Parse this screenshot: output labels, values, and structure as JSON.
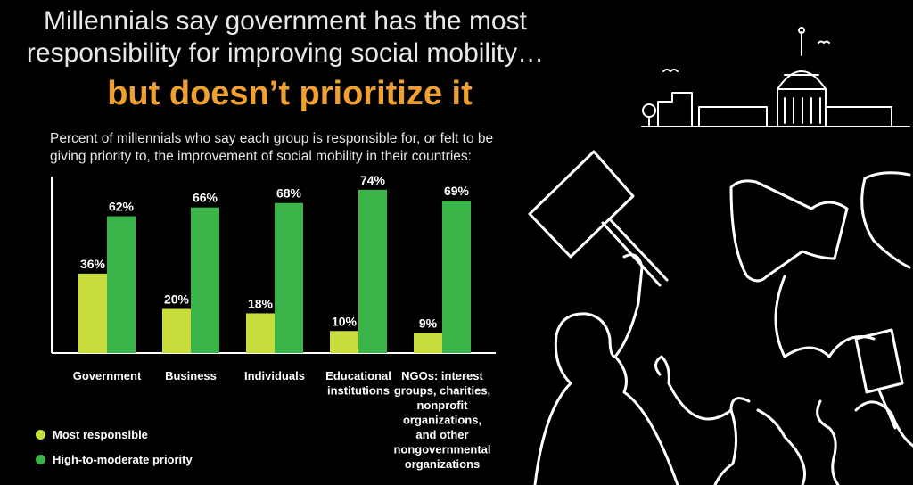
{
  "header": {
    "title_line1": "Millennials say government has the most",
    "title_line2": "responsibility for improving social mobility…",
    "title_line3": "but doesn’t prioritize it",
    "subtitle_line1": "Percent of millennials who say each group is responsible for, or felt to be",
    "subtitle_line2": "giving priority to, the improvement of social mobility in their countries:"
  },
  "colors": {
    "most_responsible": "#c8dc3c",
    "high_priority": "#3bb54a",
    "accent": "#f0a030"
  },
  "chart_data": {
    "type": "bar",
    "categories": [
      [
        "Government"
      ],
      [
        "Business"
      ],
      [
        "Individuals"
      ],
      [
        "Educational",
        "institutions"
      ],
      [
        "NGOs: interest",
        "groups, charities,",
        "nonprofit",
        "organizations,",
        "and other",
        "nongovernmental",
        "organizations"
      ]
    ],
    "series": [
      {
        "name": "Most responsible",
        "values": [
          36,
          20,
          18,
          10,
          9
        ],
        "labels": [
          "36%",
          "20%",
          "18%",
          "10%",
          "9%"
        ]
      },
      {
        "name": "High-to-moderate priority",
        "values": [
          62,
          66,
          68,
          74,
          69
        ],
        "labels": [
          "62%",
          "66%",
          "68%",
          "74%",
          "69%"
        ]
      }
    ],
    "ylim": [
      0,
      80
    ],
    "grid": false,
    "legend_position": "bottom-left"
  },
  "legend": {
    "item1": "Most responsible",
    "item2": "High-to-moderate priority"
  },
  "illustration": {
    "icons": [
      "capitol-building-icon",
      "protester-sign-icon",
      "megaphone-icon",
      "crowd-icon"
    ]
  }
}
